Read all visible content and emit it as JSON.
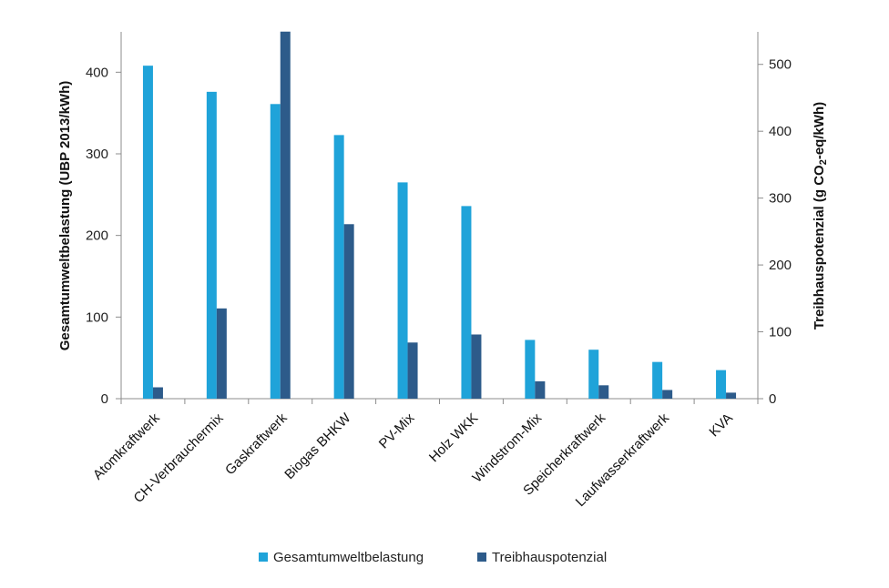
{
  "chart_data": {
    "type": "bar",
    "categories": [
      "Atomkraftwerk",
      "CH-Verbrauchermix",
      "Gaskraftwerk",
      "Biogas BHKW",
      "PV-Mix",
      "Holz WKK",
      "Windstrom-Mix",
      "Speicherkraftwerk",
      "Laufwasserkraftwerk",
      "KVA"
    ],
    "series": [
      {
        "name": "Gesamtumweltbelastung",
        "axis": "left",
        "color": "#1fa3d9",
        "values": [
          408,
          376,
          361,
          323,
          265,
          236,
          72,
          60,
          45,
          35
        ]
      },
      {
        "name": "Treibhauspotenzial",
        "axis": "right",
        "color": "#2d5b8a",
        "values": [
          17,
          135,
          549,
          261,
          84,
          96,
          26,
          20,
          13,
          9
        ]
      }
    ],
    "ylabel": "Gesamtumweltbelastung (UBP 2013/kWh)",
    "y2label_parts": [
      "Treibhauspotenzial (g CO",
      "2",
      "-eq/kWh)"
    ],
    "ylim": [
      0,
      450
    ],
    "yticks": [
      "0",
      "100",
      "200",
      "300",
      "400"
    ],
    "y2lim": [
      0,
      550
    ],
    "y2ticks": [
      "0",
      "100",
      "200",
      "300",
      "400",
      "500"
    ],
    "grid": false,
    "legend": "bottom"
  }
}
